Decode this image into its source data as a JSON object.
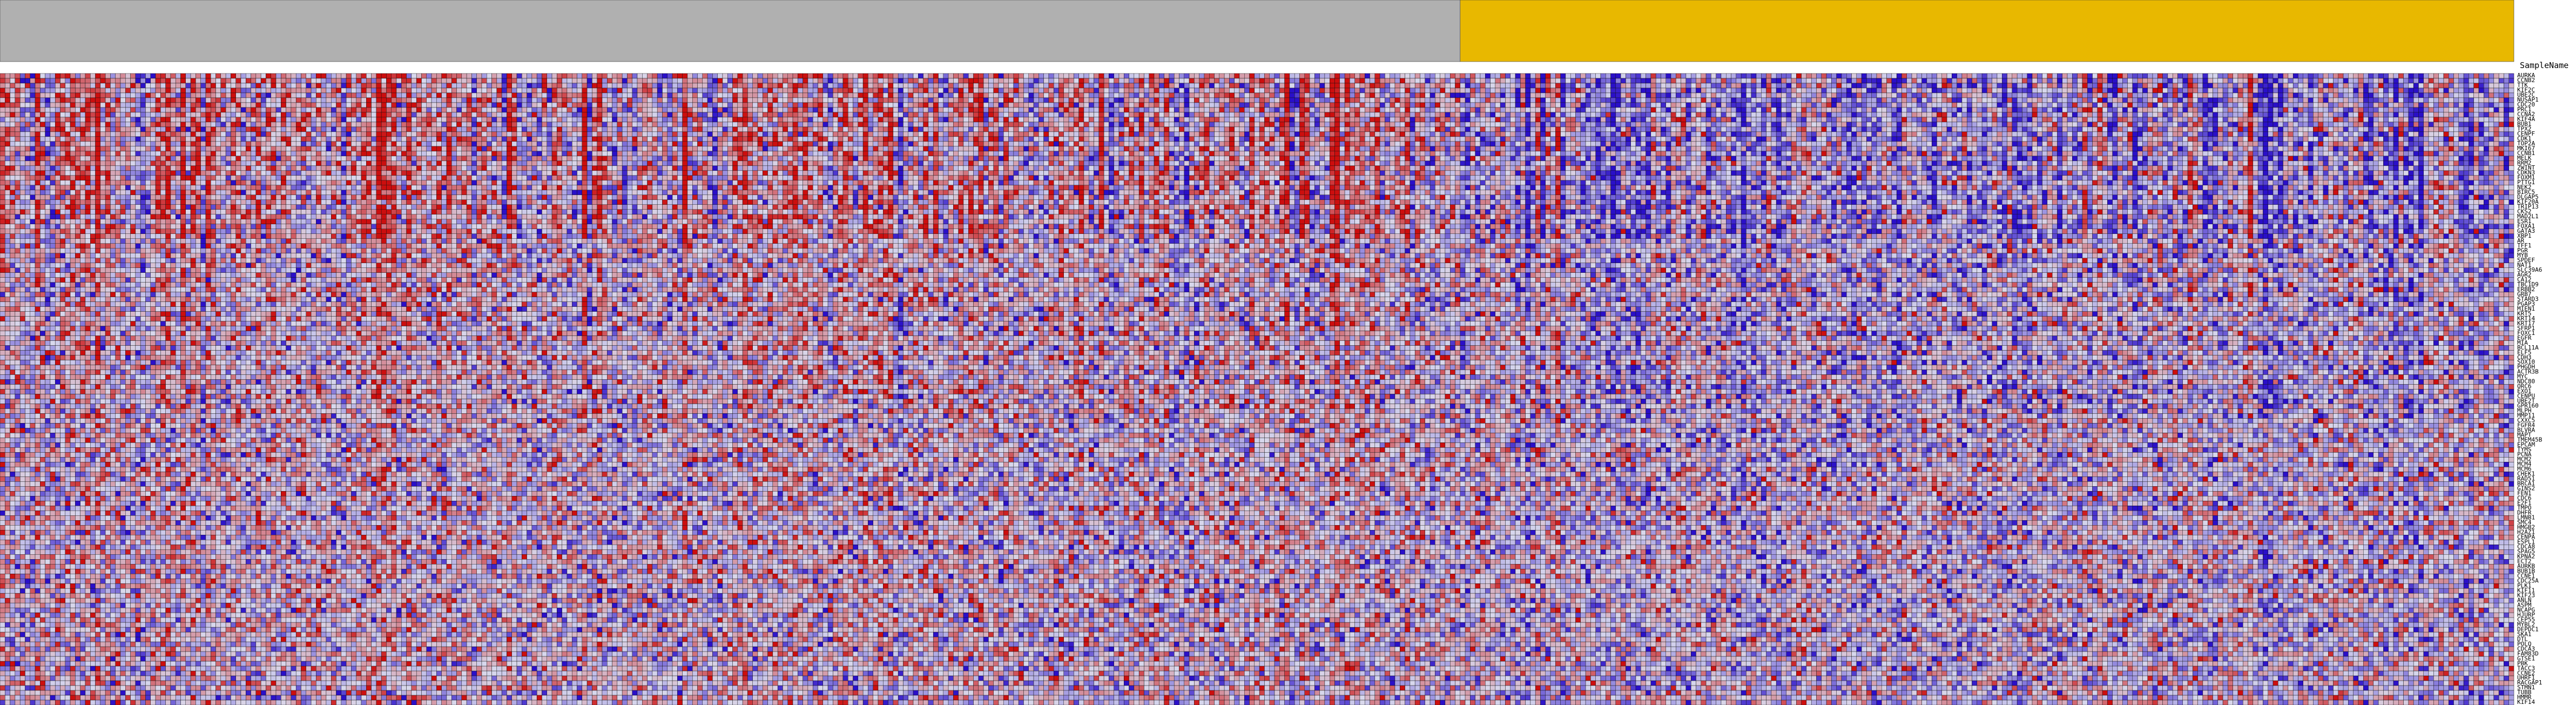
{
  "chart_data": {
    "type": "heatmap",
    "header_label": "SampleName",
    "n_columns": 501,
    "column_groups": [
      {
        "count": 291,
        "color": "#b0b0b0"
      },
      {
        "count": 210,
        "color": "#e8b800"
      }
    ],
    "row_labels": [
      "AURKA",
      "CCNB2",
      "TTK",
      "KIF2C",
      "UBE2C",
      "NUSAP1",
      "CDC20",
      "PRC1",
      "CCNA2",
      "KIF4A",
      "BUB1",
      "TPX2",
      "CENPF",
      "CDK1",
      "TOP2A",
      "MKI67",
      "CCNB1",
      "MELK",
      "RRM2",
      "ZWINT",
      "CDKN3",
      "FOXM1",
      "PTTG1",
      "NEK2",
      "BIRC5",
      "DLGAP5",
      "KIF20A",
      "TRIP13",
      "CKS2",
      "MAD2L1",
      "ESR1",
      "FOXA1",
      "GATA3",
      "XBP1",
      "AR",
      "TFF1",
      "PGR",
      "MYB",
      "SPDEF",
      "NAT1",
      "SLC39A6",
      "AGR2",
      "CA12",
      "TBC1D9",
      "ERBB2",
      "GRB7",
      "STARD3",
      "PGAP3",
      "MIEN1",
      "KRT5",
      "KRT14",
      "KRT17",
      "SFRP1",
      "FOXC1",
      "EGFR",
      "MIA",
      "BCL11A",
      "ELF5",
      "CDH3",
      "SOX10",
      "PHGDH",
      "ACTR3B",
      "MYC",
      "NDC80",
      "ORC6",
      "EXO1",
      "CENPU",
      "UBE2T",
      "GPR160",
      "MLPH",
      "MMP11",
      "CXXC5",
      "FGFR4",
      "BLVRA",
      "MAPT",
      "TMEM45B",
      "EPCAM",
      "TYMS",
      "PCNA",
      "MCM2",
      "MCM4",
      "MCM6",
      "CHEK1",
      "RAD51",
      "BRCA1",
      "GINS2",
      "FEN1",
      "CDC6",
      "E2F1",
      "TMPO",
      "DHFR",
      "LMNB1",
      "SMC4",
      "HMGB2",
      "H2AZ1",
      "CENPA",
      "ESPL1",
      "CDCA8",
      "SPAG5",
      "KPNA2",
      "ECT2",
      "AURKB",
      "BUB1B",
      "CCNE1",
      "CDC25A",
      "PLK1",
      "KIF11",
      "KIF23",
      "ANLN",
      "ASPM",
      "NCAPG",
      "HJURP",
      "CEP55",
      "MYBL2",
      "DEPDC1",
      "SKA1",
      "DTL",
      "POLQ",
      "CDCA3",
      "FAM83D",
      "GTSE1",
      "PBK",
      "TACC3",
      "CCNE2",
      "UHRF1",
      "RACGAP1",
      "STMN1",
      "TUBB",
      "HMMR",
      "KIF14"
    ],
    "value_range": [
      -2,
      2
    ],
    "colors": {
      "low": "#2a0fc8",
      "mid": "#d8d8ec",
      "high": "#cc0e0e"
    },
    "grid_color": "#111111"
  }
}
